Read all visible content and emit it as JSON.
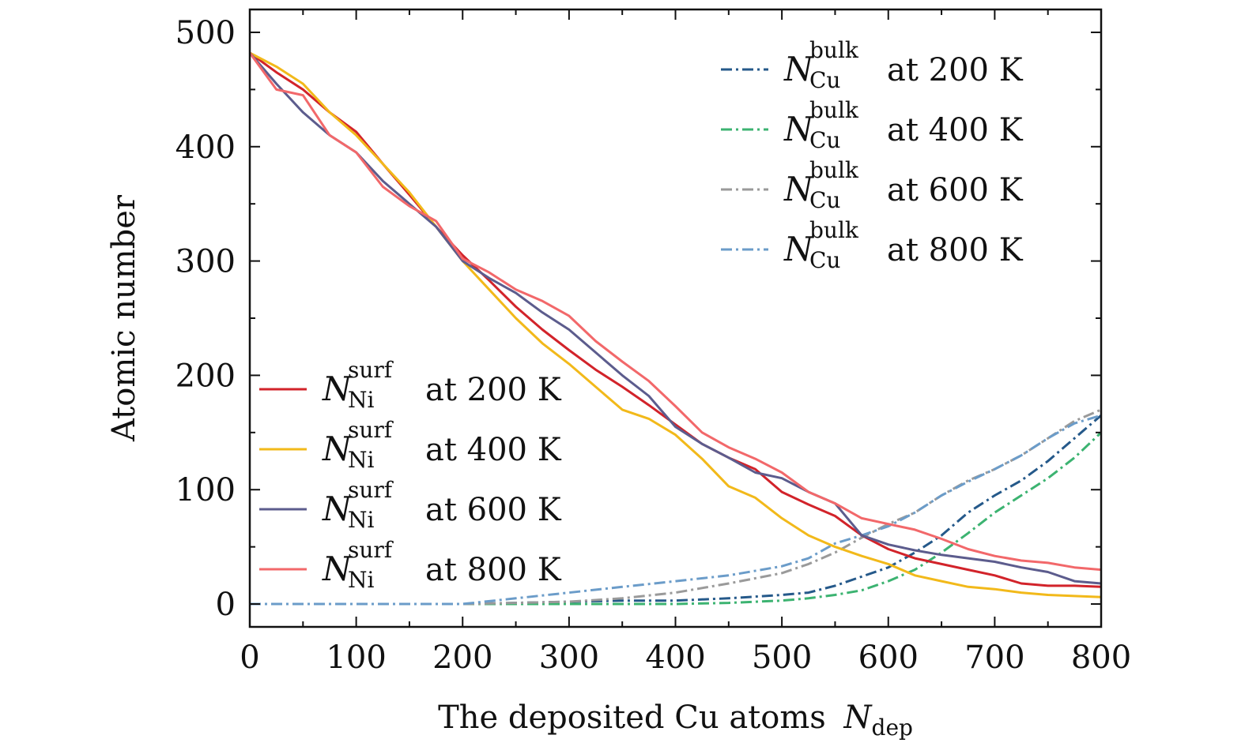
{
  "chart_data": {
    "type": "line",
    "xlabel": "The deposited Cu atoms",
    "xlabel_symbol": "N",
    "xlabel_sub": "dep",
    "ylabel": "Atomic number",
    "xlim": [
      0,
      800
    ],
    "ylim": [
      -20,
      520
    ],
    "xticks": [
      0,
      100,
      200,
      300,
      400,
      500,
      600,
      700,
      800
    ],
    "xtick_labels": [
      "0",
      "100",
      "200",
      "300",
      "400",
      "500",
      "600",
      "700",
      "800"
    ],
    "yticks": [
      0,
      100,
      200,
      300,
      400,
      500
    ],
    "ytick_labels": [
      "0",
      "100",
      "200",
      "300",
      "400",
      "500"
    ],
    "grid": false,
    "legend_placement": {
      "bulk": "top-right",
      "surf": "bottom-left"
    },
    "series": [
      {
        "name": "N_Ni^surf at 200 K",
        "group": "surf",
        "symbol": "N",
        "sup": "surf",
        "sub": "Ni",
        "temp_text": "at 200 K",
        "color": "#d2232a",
        "dash": "solid",
        "x": [
          0,
          25,
          50,
          75,
          100,
          125,
          150,
          175,
          200,
          225,
          250,
          275,
          300,
          325,
          350,
          375,
          400,
          425,
          450,
          475,
          500,
          525,
          550,
          575,
          600,
          625,
          650,
          675,
          700,
          725,
          750,
          775,
          800
        ],
        "y": [
          482,
          465,
          450,
          430,
          413,
          385,
          358,
          330,
          305,
          283,
          260,
          240,
          222,
          205,
          190,
          174,
          157,
          140,
          128,
          118,
          98,
          87,
          77,
          60,
          48,
          40,
          35,
          30,
          25,
          18,
          16,
          16,
          15
        ]
      },
      {
        "name": "N_Ni^surf at 400 K",
        "group": "surf",
        "symbol": "N",
        "sup": "surf",
        "sub": "Ni",
        "temp_text": "at 400 K",
        "color": "#f2b91a",
        "dash": "solid",
        "x": [
          0,
          25,
          50,
          75,
          100,
          125,
          150,
          175,
          200,
          225,
          250,
          275,
          300,
          325,
          350,
          375,
          400,
          425,
          450,
          475,
          500,
          525,
          550,
          575,
          600,
          625,
          650,
          675,
          700,
          725,
          750,
          775,
          800
        ],
        "y": [
          482,
          470,
          455,
          430,
          410,
          385,
          360,
          330,
          300,
          275,
          250,
          228,
          210,
          190,
          170,
          162,
          148,
          127,
          103,
          93,
          75,
          60,
          50,
          42,
          35,
          25,
          20,
          15,
          13,
          10,
          8,
          7,
          6
        ]
      },
      {
        "name": "N_Ni^surf at 600 K",
        "group": "surf",
        "symbol": "N",
        "sup": "surf",
        "sub": "Ni",
        "temp_text": "at 600 K",
        "color": "#5c5c8d",
        "dash": "solid",
        "x": [
          0,
          25,
          50,
          75,
          100,
          125,
          150,
          175,
          200,
          225,
          250,
          275,
          300,
          325,
          350,
          375,
          400,
          425,
          450,
          475,
          500,
          525,
          550,
          575,
          600,
          625,
          650,
          675,
          700,
          725,
          750,
          775,
          800
        ],
        "y": [
          482,
          455,
          430,
          410,
          395,
          370,
          350,
          330,
          300,
          285,
          272,
          255,
          240,
          220,
          200,
          182,
          155,
          140,
          128,
          115,
          110,
          98,
          88,
          60,
          52,
          47,
          43,
          40,
          37,
          32,
          28,
          20,
          18
        ]
      },
      {
        "name": "N_Ni^surf at 800 K",
        "group": "surf",
        "symbol": "N",
        "sup": "surf",
        "sub": "Ni",
        "temp_text": "at 800 K",
        "color": "#f2686a",
        "dash": "solid",
        "x": [
          0,
          25,
          50,
          75,
          100,
          125,
          150,
          175,
          200,
          225,
          250,
          275,
          300,
          325,
          350,
          375,
          400,
          425,
          450,
          475,
          500,
          525,
          550,
          575,
          600,
          625,
          650,
          675,
          700,
          725,
          750,
          775,
          800
        ],
        "y": [
          482,
          450,
          445,
          410,
          395,
          365,
          348,
          335,
          302,
          290,
          275,
          265,
          252,
          230,
          212,
          195,
          173,
          150,
          137,
          127,
          115,
          98,
          88,
          75,
          70,
          65,
          57,
          48,
          42,
          38,
          36,
          32,
          30
        ]
      },
      {
        "name": "N_Cu^bulk at 200 K",
        "group": "bulk",
        "symbol": "N",
        "sup": "bulk",
        "sub": "Cu",
        "temp_text": "at 200 K",
        "color": "#25598a",
        "dash": "dashdot",
        "x": [
          0,
          100,
          200,
          250,
          300,
          350,
          400,
          450,
          500,
          525,
          550,
          575,
          600,
          625,
          650,
          675,
          700,
          725,
          750,
          775,
          800
        ],
        "y": [
          0,
          0,
          0,
          1,
          2,
          3,
          3,
          5,
          8,
          10,
          16,
          24,
          32,
          45,
          60,
          80,
          95,
          108,
          125,
          145,
          165
        ]
      },
      {
        "name": "N_Cu^bulk at 400 K",
        "group": "bulk",
        "symbol": "N",
        "sup": "bulk",
        "sub": "Cu",
        "temp_text": "at 400 K",
        "color": "#3cb371",
        "dash": "dashdot",
        "x": [
          0,
          100,
          200,
          250,
          300,
          350,
          400,
          450,
          500,
          525,
          550,
          575,
          600,
          625,
          650,
          675,
          700,
          725,
          750,
          775,
          800
        ],
        "y": [
          0,
          0,
          0,
          0,
          0,
          0,
          0,
          1,
          3,
          5,
          8,
          12,
          20,
          30,
          45,
          62,
          80,
          95,
          110,
          128,
          150
        ]
      },
      {
        "name": "N_Cu^bulk at 600 K",
        "group": "bulk",
        "symbol": "N",
        "sup": "bulk",
        "sub": "Cu",
        "temp_text": "at 600 K",
        "color": "#9a9a9a",
        "dash": "dashdot",
        "x": [
          0,
          100,
          200,
          250,
          300,
          350,
          400,
          450,
          500,
          525,
          550,
          575,
          600,
          625,
          650,
          675,
          700,
          725,
          750,
          775,
          800
        ],
        "y": [
          0,
          0,
          0,
          1,
          2,
          5,
          10,
          18,
          27,
          35,
          45,
          58,
          70,
          80,
          95,
          108,
          118,
          130,
          145,
          160,
          170
        ]
      },
      {
        "name": "N_Cu^bulk at 800 K",
        "group": "bulk",
        "symbol": "N",
        "sup": "bulk",
        "sub": "Cu",
        "temp_text": "at 800 K",
        "color": "#6b9cc9",
        "dash": "dashdot",
        "x": [
          0,
          100,
          200,
          250,
          300,
          350,
          400,
          450,
          500,
          525,
          550,
          575,
          600,
          625,
          650,
          675,
          700,
          725,
          750,
          775,
          800
        ],
        "y": [
          0,
          0,
          0,
          5,
          10,
          15,
          20,
          25,
          33,
          40,
          53,
          60,
          68,
          80,
          95,
          107,
          118,
          130,
          145,
          158,
          165
        ]
      }
    ]
  }
}
